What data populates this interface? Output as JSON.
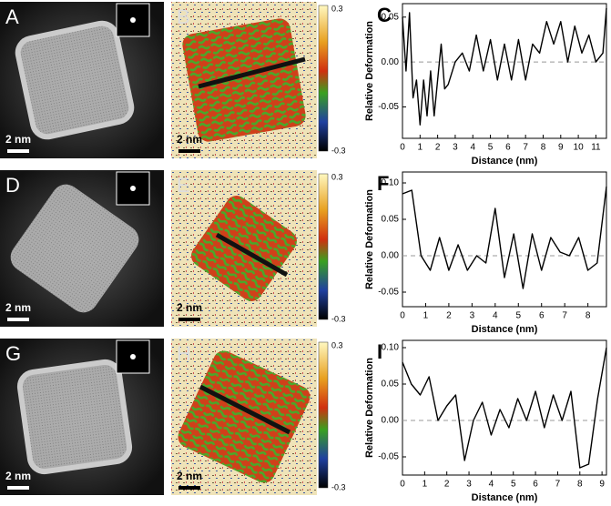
{
  "panels": [
    {
      "label": "A",
      "scale_bar": "2 nm"
    },
    {
      "label": "B",
      "scale_bar": "2 nm",
      "colorbar": [
        "0.3",
        "-0.3"
      ]
    },
    {
      "label": "D",
      "scale_bar": "2 nm"
    },
    {
      "label": "E",
      "scale_bar": "2 nm",
      "colorbar": [
        "0.3",
        "-0.3"
      ]
    },
    {
      "label": "G",
      "scale_bar": "2 nm"
    },
    {
      "label": "H",
      "scale_bar": "2 nm",
      "colorbar": [
        "0.3",
        "-0.3"
      ]
    }
  ],
  "chart_data": [
    {
      "type": "line",
      "panel": "C",
      "x_label": "Distance (nm)",
      "y_label": "Relative Deformation",
      "color": "#000000",
      "zero_line": true,
      "x": [
        0,
        0.2,
        0.4,
        0.6,
        0.8,
        1.0,
        1.2,
        1.4,
        1.6,
        1.8,
        2.0,
        2.2,
        2.4,
        2.6,
        3.0,
        3.4,
        3.8,
        4.2,
        4.6,
        5.0,
        5.4,
        5.8,
        6.2,
        6.6,
        7.0,
        7.4,
        7.8,
        8.2,
        8.6,
        9.0,
        9.4,
        9.8,
        10.2,
        10.6,
        11.0,
        11.4,
        11.6
      ],
      "values": [
        0.05,
        -0.01,
        0.055,
        -0.04,
        -0.02,
        -0.07,
        -0.02,
        -0.06,
        -0.01,
        -0.06,
        -0.02,
        0.02,
        -0.03,
        -0.025,
        0.0,
        0.01,
        -0.01,
        0.03,
        -0.01,
        0.025,
        -0.02,
        0.02,
        -0.02,
        0.025,
        -0.02,
        0.02,
        0.01,
        0.045,
        0.02,
        0.045,
        0.0,
        0.04,
        0.01,
        0.03,
        0.0,
        0.01,
        0.06
      ],
      "xlim": [
        0,
        11.6
      ],
      "xticks": [
        0,
        1,
        2,
        3,
        4,
        5,
        6,
        7,
        8,
        9,
        10,
        11
      ],
      "ylim": [
        -0.085,
        0.065
      ],
      "yticks": [
        {
          "value": -0.05,
          "label": "-0.05"
        },
        {
          "value": 0,
          "label": "0.00"
        },
        {
          "value": 0.05,
          "label": "0.05"
        }
      ]
    },
    {
      "type": "line",
      "panel": "F",
      "x_label": "Distance (nm)",
      "y_label": "Relative Deformation",
      "color": "#000000",
      "zero_line": true,
      "x": [
        0,
        0.4,
        0.8,
        1.2,
        1.6,
        2.0,
        2.4,
        2.8,
        3.2,
        3.6,
        4.0,
        4.4,
        4.8,
        5.2,
        5.6,
        6.0,
        6.4,
        6.8,
        7.2,
        7.6,
        8.0,
        8.4,
        8.8
      ],
      "values": [
        0.085,
        0.09,
        0.0,
        -0.02,
        0.025,
        -0.02,
        0.015,
        -0.02,
        0.0,
        -0.01,
        0.065,
        -0.03,
        0.03,
        -0.045,
        0.03,
        -0.02,
        0.025,
        0.005,
        0.0,
        0.025,
        -0.02,
        -0.01,
        0.095
      ],
      "xlim": [
        0,
        8.8
      ],
      "xticks": [
        0,
        1,
        2,
        3,
        4,
        5,
        6,
        7,
        8
      ],
      "ylim": [
        -0.07,
        0.115
      ],
      "yticks": [
        {
          "value": -0.05,
          "label": "-0.05"
        },
        {
          "value": 0,
          "label": "0.00"
        },
        {
          "value": 0.05,
          "label": "0.05"
        },
        {
          "value": 0.1,
          "label": "0.10"
        }
      ]
    },
    {
      "type": "line",
      "panel": "I",
      "x_label": "Distance (nm)",
      "y_label": "Relative Deformation",
      "color": "#000000",
      "zero_line": true,
      "x": [
        0,
        0.4,
        0.8,
        1.2,
        1.6,
        2.0,
        2.4,
        2.8,
        3.2,
        3.6,
        4.0,
        4.4,
        4.8,
        5.2,
        5.6,
        6.0,
        6.4,
        6.8,
        7.2,
        7.6,
        8.0,
        8.4,
        8.8,
        9.2
      ],
      "values": [
        0.08,
        0.05,
        0.035,
        0.06,
        0.0,
        0.02,
        0.035,
        -0.055,
        0.0,
        0.025,
        -0.02,
        0.015,
        -0.01,
        0.03,
        0.0,
        0.04,
        -0.01,
        0.035,
        0.0,
        0.04,
        -0.065,
        -0.06,
        0.03,
        0.1
      ],
      "xlim": [
        0,
        9.2
      ],
      "xticks": [
        0,
        1,
        2,
        3,
        4,
        5,
        6,
        7,
        8,
        9
      ],
      "ylim": [
        -0.075,
        0.11
      ],
      "yticks": [
        {
          "value": -0.05,
          "label": "-0.05"
        },
        {
          "value": 0,
          "label": "0.00"
        },
        {
          "value": 0.05,
          "label": "0.05"
        },
        {
          "value": 0.1,
          "label": "0.10"
        }
      ]
    }
  ]
}
